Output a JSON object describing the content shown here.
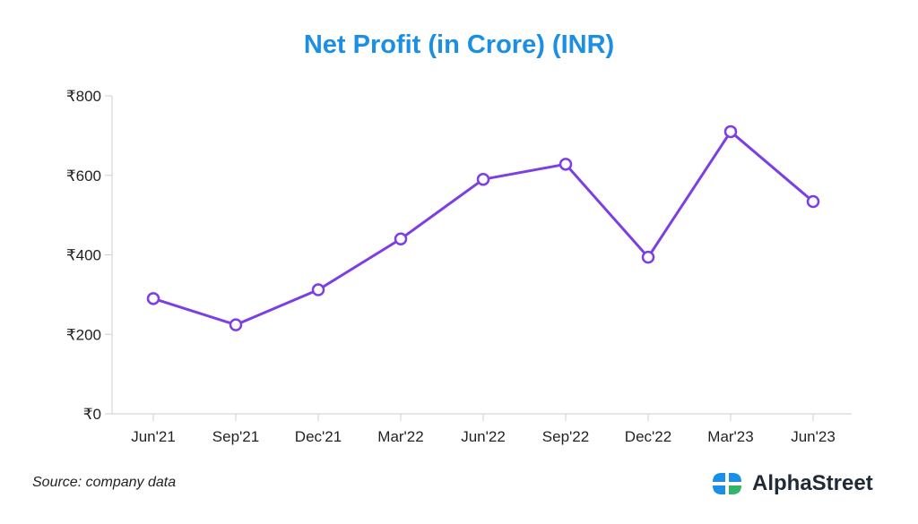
{
  "chart_data": {
    "type": "line",
    "title": "Net Profit (in Crore) (INR)",
    "xlabel": "",
    "ylabel": "",
    "categories": [
      "Jun'21",
      "Sep'21",
      "Dec'21",
      "Mar'22",
      "Jun'22",
      "Sep'22",
      "Dec'22",
      "Mar'23",
      "Jun'23"
    ],
    "series": [
      {
        "values": [
          290,
          224,
          312,
          440,
          590,
          628,
          394,
          710,
          534
        ]
      }
    ],
    "ylim": [
      0,
      800
    ],
    "yticks": [
      0,
      200,
      400,
      600,
      800
    ],
    "ytick_labels": [
      "₹0",
      "₹200",
      "₹400",
      "₹600",
      "₹800"
    ],
    "grid": false,
    "line_color": "#7b3fe4",
    "title_color": "#1a8fe3"
  },
  "footer": {
    "source": "Source: company data",
    "brand": "AlphaStreet"
  },
  "logo": {
    "colors": [
      "#1a8fe3",
      "#34b36b"
    ]
  }
}
